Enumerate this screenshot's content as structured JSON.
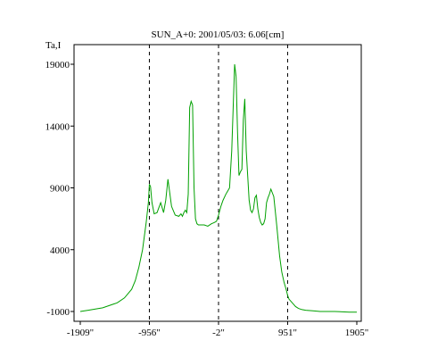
{
  "chart_data": {
    "type": "line",
    "title": "SUN_A+0: 2001/05/03: 6.06[cm]",
    "ylabel": "Ta,I",
    "xlabel": "",
    "xlim": [
      -1909,
      1905
    ],
    "ylim": [
      -1000,
      20000
    ],
    "grid": false,
    "xticks": [
      {
        "value": -1909,
        "label": "-1909\""
      },
      {
        "value": -956,
        "label": "-956\""
      },
      {
        "value": -2,
        "label": "-2\""
      },
      {
        "value": 951,
        "label": "951\""
      },
      {
        "value": 1905,
        "label": "1905\""
      }
    ],
    "yticks": [
      {
        "value": -1000,
        "label": "-1000"
      },
      {
        "value": 4000,
        "label": "4000"
      },
      {
        "value": 9000,
        "label": "9000"
      },
      {
        "value": 14000,
        "label": "14000"
      },
      {
        "value": 19000,
        "label": "19000"
      }
    ],
    "vlines": [
      -956,
      -2,
      951
    ],
    "series": [
      {
        "color": "#00a000",
        "x": [
          -1909,
          -1800,
          -1600,
          -1400,
          -1300,
          -1200,
          -1150,
          -1100,
          -1050,
          -1000,
          -970,
          -956,
          -940,
          -920,
          -890,
          -850,
          -800,
          -760,
          -730,
          -700,
          -650,
          -600,
          -550,
          -520,
          -500,
          -480,
          -460,
          -440,
          -420,
          -400,
          -380,
          -360,
          -340,
          -320,
          -300,
          -280,
          -250,
          -200,
          -150,
          -100,
          -60,
          -30,
          -2,
          30,
          60,
          100,
          150,
          180,
          200,
          220,
          240,
          260,
          280,
          300,
          320,
          340,
          360,
          380,
          400,
          420,
          440,
          460,
          480,
          500,
          520,
          540,
          560,
          580,
          600,
          620,
          640,
          660,
          680,
          700,
          720,
          760,
          800,
          840,
          870,
          900,
          930,
          951,
          970,
          1000,
          1030,
          1060,
          1100,
          1150,
          1200,
          1300,
          1400,
          1600,
          1800,
          1905
        ],
        "y": [
          -1000,
          -900,
          -700,
          -300,
          100,
          800,
          1500,
          2600,
          4000,
          6200,
          7800,
          9300,
          9100,
          7800,
          6900,
          7000,
          7800,
          7000,
          8000,
          9700,
          7500,
          6800,
          6700,
          6900,
          6700,
          7000,
          7200,
          7000,
          8500,
          15500,
          16000,
          15700,
          9000,
          6500,
          6100,
          6000,
          6000,
          6000,
          5900,
          6100,
          6200,
          6300,
          6800,
          7500,
          8000,
          8500,
          9000,
          12000,
          15500,
          19000,
          18000,
          13500,
          10000,
          10300,
          10500,
          14500,
          16200,
          12000,
          10000,
          8000,
          7200,
          7000,
          7300,
          8200,
          8400,
          7300,
          6600,
          6200,
          6000,
          6100,
          6500,
          7800,
          8200,
          8500,
          8900,
          8300,
          6000,
          3500,
          2200,
          1400,
          800,
          300,
          0,
          -200,
          -400,
          -600,
          -750,
          -850,
          -900,
          -950,
          -1000,
          -1000,
          -1050,
          -1050
        ]
      }
    ]
  }
}
